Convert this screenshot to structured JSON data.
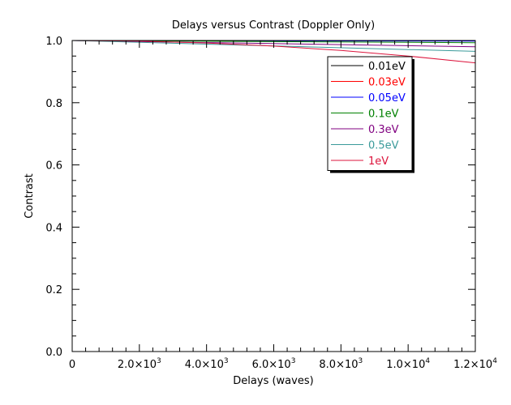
{
  "chart_data": {
    "type": "line",
    "title": "Delays versus Contrast (Doppler Only)",
    "xlabel": "Delays (waves)",
    "ylabel": "Contrast",
    "xlim": [
      0,
      12000
    ],
    "ylim": [
      0,
      1.0
    ],
    "x_ticks": [
      {
        "value": 0,
        "mantissa": "0",
        "exponent": ""
      },
      {
        "value": 2000,
        "mantissa": "2.0×10",
        "exponent": "3"
      },
      {
        "value": 4000,
        "mantissa": "4.0×10",
        "exponent": "3"
      },
      {
        "value": 6000,
        "mantissa": "6.0×10",
        "exponent": "3"
      },
      {
        "value": 8000,
        "mantissa": "8.0×10",
        "exponent": "3"
      },
      {
        "value": 10000,
        "mantissa": "1.0×10",
        "exponent": "4"
      },
      {
        "value": 12000,
        "mantissa": "1.2×10",
        "exponent": "4"
      }
    ],
    "y_ticks": [
      "0.0",
      "0.2",
      "0.4",
      "0.6",
      "0.8",
      "1.0"
    ],
    "grid": false,
    "legend_position": "top-right",
    "series": [
      {
        "name": "0.01eV",
        "color": "#000000",
        "x": [
          0,
          12000
        ],
        "y": [
          1.0,
          1.0
        ]
      },
      {
        "name": "0.03eV",
        "color": "#ff0000",
        "x": [
          0,
          12000
        ],
        "y": [
          1.0,
          0.999
        ]
      },
      {
        "name": "0.05eV",
        "color": "#0000ff",
        "x": [
          0,
          12000
        ],
        "y": [
          1.0,
          0.998
        ]
      },
      {
        "name": "0.1eV",
        "color": "#008000",
        "x": [
          0,
          12000
        ],
        "y": [
          1.0,
          0.993
        ]
      },
      {
        "name": "0.3eV",
        "color": "#800080",
        "x": [
          0,
          12000
        ],
        "y": [
          1.0,
          0.98
        ]
      },
      {
        "name": "0.5eV",
        "color": "#3a9a9a",
        "x": [
          0,
          12000
        ],
        "y": [
          1.0,
          0.965
        ]
      },
      {
        "name": "1eV",
        "color": "#dc143c",
        "x": [
          0,
          2000,
          4000,
          6000,
          8000,
          10000,
          12000
        ],
        "y": [
          1.0,
          0.998,
          0.992,
          0.982,
          0.968,
          0.95,
          0.928
        ]
      }
    ]
  }
}
